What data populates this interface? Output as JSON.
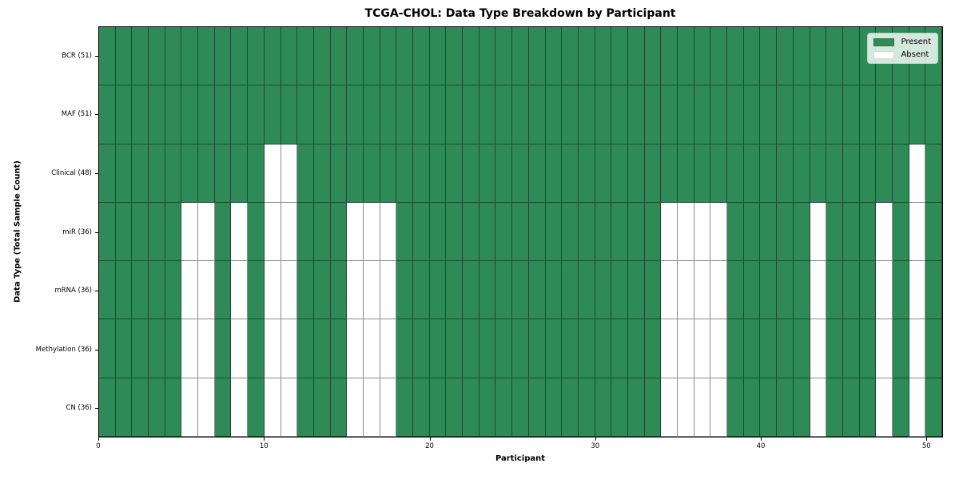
{
  "chart_data": {
    "type": "heatmap",
    "title": "TCGA-CHOL: Data Type Breakdown by Participant",
    "xlabel": "Participant",
    "ylabel": "Data Type (Total Sample Count)",
    "x_ticks": [
      0,
      10,
      20,
      30,
      40,
      50
    ],
    "xlim": [
      0,
      51
    ],
    "n_participants": 51,
    "grid": true,
    "rows": [
      {
        "label": "BCR (51)",
        "total": 51,
        "absent_participants": []
      },
      {
        "label": "MAF (51)",
        "total": 51,
        "absent_participants": []
      },
      {
        "label": "Clinical (48)",
        "total": 48,
        "absent_participants": [
          10,
          11,
          49
        ]
      },
      {
        "label": "miR (36)",
        "total": 36,
        "absent_participants": [
          5,
          6,
          8,
          10,
          11,
          15,
          16,
          17,
          34,
          35,
          36,
          37,
          43,
          47,
          49
        ]
      },
      {
        "label": "mRNA (36)",
        "total": 36,
        "absent_participants": [
          5,
          6,
          8,
          10,
          11,
          15,
          16,
          17,
          34,
          35,
          36,
          37,
          43,
          47,
          49
        ]
      },
      {
        "label": "Methylation (36)",
        "total": 36,
        "absent_participants": [
          5,
          6,
          8,
          10,
          11,
          15,
          16,
          17,
          34,
          35,
          36,
          37,
          43,
          47,
          49
        ]
      },
      {
        "label": "CN (36)",
        "total": 36,
        "absent_participants": [
          5,
          6,
          8,
          10,
          11,
          15,
          16,
          17,
          34,
          35,
          36,
          37,
          43,
          47,
          49
        ]
      }
    ],
    "colors": {
      "present": "#2e8b57",
      "absent": "#ffffff",
      "cell_border": "rgba(0,0,0,0.45)",
      "spine": "#000000"
    },
    "legend": {
      "position": "upper right",
      "entries": [
        {
          "label": "Present",
          "color": "#2e8b57"
        },
        {
          "label": "Absent",
          "color": "#ffffff"
        }
      ]
    }
  }
}
